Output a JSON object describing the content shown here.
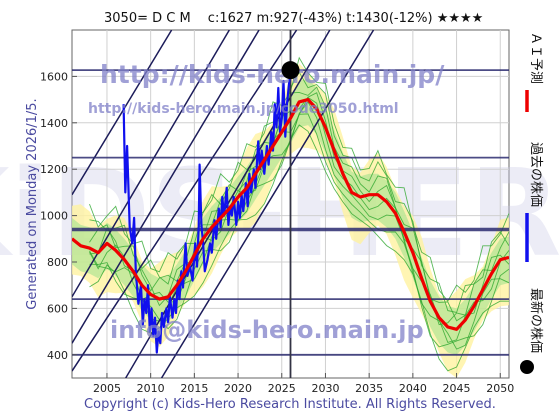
{
  "header": {
    "title": "3050= D C M　 c:1627  m:927(-43%)  t:1430(-12%)  ★★★★"
  },
  "side_left": "Generated on Monday 2026/1/5.",
  "footer": "Copyright (c) Kids-Hero Research Institute. All Rights Reserved.",
  "watermarks": {
    "url": "http://kids-hero.main.jp/",
    "page": "http://kids-hero.main.jp/code3050.html",
    "email": "info@kids-hero.main.jp",
    "big": "KiDS-HERO"
  },
  "legend": [
    {
      "label": "ＡＩ予測",
      "color": "#ee0000",
      "marker": "line"
    },
    {
      "label": "過去の株価",
      "color": "#1010ee",
      "marker": "line"
    },
    {
      "label": "最新の株価",
      "color": "#000000",
      "marker": "dot"
    }
  ],
  "chart_data": {
    "type": "line",
    "title": "3050= D C M　 c:1627  m:927(-43%)  t:1430(-12%)  ★★★★",
    "xlabel": "",
    "ylabel": "",
    "xlim": [
      2001,
      2051
    ],
    "ylim": [
      300,
      1800
    ],
    "x_ticks": [
      2005,
      2010,
      2015,
      2020,
      2025,
      2030,
      2035,
      2040,
      2045,
      2050
    ],
    "y_ticks": [
      400,
      600,
      800,
      1000,
      1200,
      1400,
      1600
    ],
    "grid": true,
    "h_levels": [
      400,
      640,
      940,
      1250,
      1627
    ],
    "v_marker_x": 2026.0,
    "latest_point": {
      "x": 2026.0,
      "y": 1627
    },
    "channel_lines": [
      {
        "from": [
          2001,
          330
        ],
        "to": [
          2026.7,
          1800
        ]
      },
      {
        "from": [
          2001,
          450
        ],
        "to": [
          2022.4,
          1800
        ]
      },
      {
        "from": [
          2001,
          650
        ],
        "to": [
          2019.0,
          1800
        ]
      },
      {
        "from": [
          2004.5,
          130
        ],
        "to": [
          2030.5,
          1800
        ]
      },
      {
        "from": [
          2008.5,
          130
        ],
        "to": [
          2035.5,
          1800
        ]
      },
      {
        "from": [
          2001,
          1090
        ],
        "to": [
          2012.4,
          1800
        ]
      }
    ],
    "series": [
      {
        "name": "過去の株価",
        "color": "#1010ee",
        "points": [
          [
            2006.9,
            1480
          ],
          [
            2007.1,
            1100
          ],
          [
            2007.3,
            1300
          ],
          [
            2007.6,
            950
          ],
          [
            2007.9,
            880
          ],
          [
            2008.1,
            990
          ],
          [
            2008.3,
            760
          ],
          [
            2008.6,
            620
          ],
          [
            2008.9,
            700
          ],
          [
            2009.1,
            530
          ],
          [
            2009.3,
            640
          ],
          [
            2009.5,
            580
          ],
          [
            2009.7,
            700
          ],
          [
            2009.9,
            500
          ],
          [
            2010.1,
            600
          ],
          [
            2010.3,
            480
          ],
          [
            2010.5,
            560
          ],
          [
            2010.7,
            410
          ],
          [
            2010.9,
            500
          ],
          [
            2011.1,
            450
          ],
          [
            2011.3,
            580
          ],
          [
            2011.5,
            520
          ],
          [
            2011.8,
            600
          ],
          [
            2012.0,
            540
          ],
          [
            2012.2,
            650
          ],
          [
            2012.5,
            560
          ],
          [
            2012.7,
            640
          ],
          [
            2012.9,
            580
          ],
          [
            2013.1,
            720
          ],
          [
            2013.3,
            640
          ],
          [
            2013.5,
            760
          ],
          [
            2013.7,
            690
          ],
          [
            2013.9,
            820
          ],
          [
            2014.0,
            880
          ],
          [
            2014.2,
            740
          ],
          [
            2014.5,
            780
          ],
          [
            2014.8,
            720
          ],
          [
            2015.1,
            880
          ],
          [
            2015.3,
            780
          ],
          [
            2015.5,
            950
          ],
          [
            2015.6,
            1220
          ],
          [
            2015.8,
            960
          ],
          [
            2016.0,
            880
          ],
          [
            2016.2,
            760
          ],
          [
            2016.5,
            810
          ],
          [
            2016.8,
            880
          ],
          [
            2017.0,
            840
          ],
          [
            2017.3,
            980
          ],
          [
            2017.5,
            900
          ],
          [
            2017.8,
            1030
          ],
          [
            2018.0,
            950
          ],
          [
            2018.2,
            1080
          ],
          [
            2018.4,
            1000
          ],
          [
            2018.7,
            1120
          ],
          [
            2018.9,
            960
          ],
          [
            2019.1,
            1040
          ],
          [
            2019.3,
            1000
          ],
          [
            2019.5,
            1080
          ],
          [
            2019.8,
            960
          ],
          [
            2020.0,
            1060
          ],
          [
            2020.2,
            990
          ],
          [
            2020.4,
            1090
          ],
          [
            2020.6,
            1020
          ],
          [
            2020.9,
            1140
          ],
          [
            2021.1,
            1040
          ],
          [
            2021.3,
            1180
          ],
          [
            2021.5,
            1100
          ],
          [
            2021.8,
            1200
          ],
          [
            2022.0,
            1120
          ],
          [
            2022.3,
            1320
          ],
          [
            2022.5,
            1200
          ],
          [
            2022.7,
            1280
          ],
          [
            2023.0,
            1180
          ],
          [
            2023.3,
            1300
          ],
          [
            2023.5,
            1220
          ],
          [
            2023.8,
            1360
          ],
          [
            2024.0,
            1280
          ],
          [
            2024.2,
            1480
          ],
          [
            2024.4,
            1380
          ],
          [
            2024.6,
            1550
          ],
          [
            2024.8,
            1360
          ],
          [
            2025.0,
            1420
          ],
          [
            2025.2,
            1580
          ],
          [
            2025.4,
            1340
          ],
          [
            2025.6,
            1480
          ],
          [
            2025.8,
            1560
          ],
          [
            2026.0,
            1627
          ]
        ]
      },
      {
        "name": "ＡＩ予測",
        "color": "#ee0000",
        "points": [
          [
            2001,
            900
          ],
          [
            2002,
            870
          ],
          [
            2003,
            860
          ],
          [
            2004,
            840
          ],
          [
            2005,
            880
          ],
          [
            2006,
            850
          ],
          [
            2007,
            810
          ],
          [
            2008,
            760
          ],
          [
            2009,
            700
          ],
          [
            2010,
            660
          ],
          [
            2011,
            640
          ],
          [
            2012,
            650
          ],
          [
            2013,
            700
          ],
          [
            2014,
            760
          ],
          [
            2015,
            830
          ],
          [
            2016,
            900
          ],
          [
            2017,
            950
          ],
          [
            2018,
            990
          ],
          [
            2019,
            1030
          ],
          [
            2020,
            1080
          ],
          [
            2021,
            1120
          ],
          [
            2022,
            1180
          ],
          [
            2023,
            1240
          ],
          [
            2024,
            1300
          ],
          [
            2025,
            1360
          ],
          [
            2026,
            1420
          ],
          [
            2027,
            1490
          ],
          [
            2028,
            1500
          ],
          [
            2029,
            1460
          ],
          [
            2030,
            1380
          ],
          [
            2031,
            1280
          ],
          [
            2032,
            1180
          ],
          [
            2033,
            1100
          ],
          [
            2034,
            1080
          ],
          [
            2035,
            1090
          ],
          [
            2036,
            1090
          ],
          [
            2037,
            1060
          ],
          [
            2038,
            1010
          ],
          [
            2039,
            930
          ],
          [
            2040,
            840
          ],
          [
            2041,
            730
          ],
          [
            2042,
            630
          ],
          [
            2043,
            560
          ],
          [
            2044,
            520
          ],
          [
            2045,
            510
          ],
          [
            2046,
            550
          ],
          [
            2047,
            610
          ],
          [
            2048,
            680
          ],
          [
            2049,
            750
          ],
          [
            2050,
            810
          ],
          [
            2051,
            820
          ]
        ]
      }
    ]
  }
}
